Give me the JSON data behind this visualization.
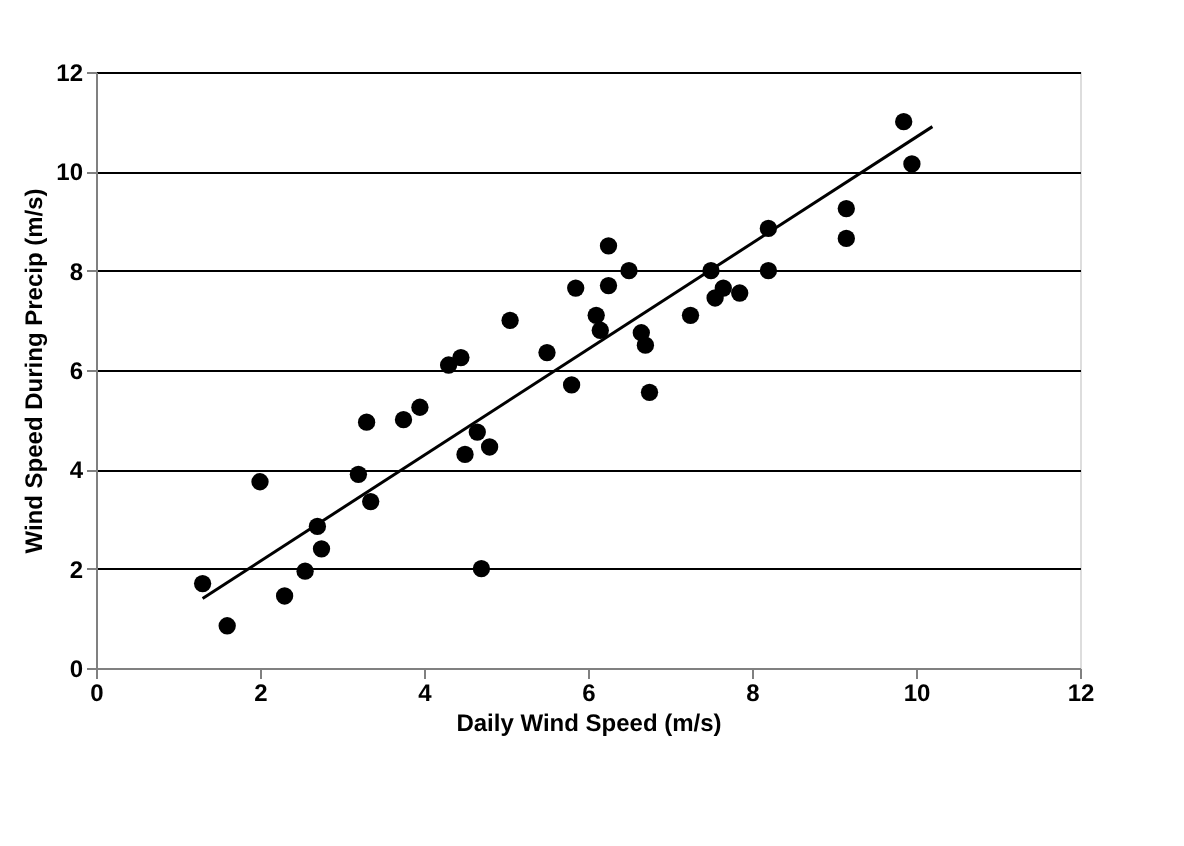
{
  "chart_data": {
    "type": "scatter",
    "xlabel": "Daily Wind Speed (m/s)",
    "ylabel": "Wind Speed During Precip (m/s)",
    "xlim": [
      0,
      12
    ],
    "xticks": [
      0,
      2,
      4,
      6,
      8,
      10,
      12
    ],
    "ylim": [
      0,
      12
    ],
    "yticks": [
      0,
      2,
      4,
      6,
      8,
      10,
      12
    ],
    "grid": "y",
    "marker": "circle",
    "series": [
      {
        "color": "#000000",
        "x": [
          1.3,
          1.6,
          2.0,
          2.3,
          2.55,
          2.7,
          2.75,
          3.2,
          3.3,
          3.35,
          3.75,
          3.95,
          4.3,
          4.45,
          4.5,
          4.65,
          4.7,
          4.8,
          5.05,
          5.5,
          5.8,
          5.85,
          6.1,
          6.15,
          6.25,
          6.25,
          6.5,
          6.65,
          6.7,
          6.75,
          7.25,
          7.5,
          7.55,
          7.65,
          7.85,
          8.2,
          8.2,
          9.15,
          9.15,
          9.85,
          9.95
        ],
        "values": [
          1.7,
          0.85,
          3.75,
          1.45,
          1.95,
          2.85,
          2.4,
          3.9,
          4.95,
          3.35,
          5.0,
          5.25,
          6.1,
          6.25,
          4.3,
          4.75,
          2.0,
          4.45,
          7.0,
          6.35,
          5.7,
          7.65,
          7.1,
          6.8,
          7.7,
          8.5,
          8.0,
          6.75,
          6.5,
          5.55,
          7.1,
          8.0,
          7.45,
          7.65,
          7.55,
          8.85,
          8.0,
          9.25,
          8.65,
          11.0,
          10.15
        ]
      },
      {
        "type": "line",
        "marker": "none",
        "color": "#000000",
        "x": [
          1.3,
          10.2
        ],
        "values": [
          1.4,
          10.9
        ]
      }
    ]
  }
}
